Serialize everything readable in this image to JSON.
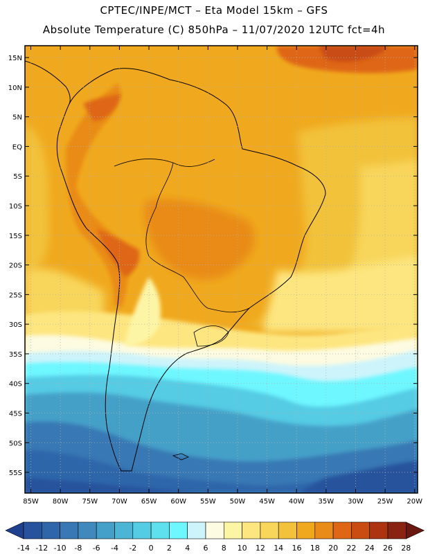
{
  "header": {
    "title_line1": "CPTEC/INPE/MCT –   Eta Model 15km – GFS",
    "title_line2": "Absolute Temperature (C) 850hPa – 11/07/2020 12UTC fct=4h"
  },
  "map": {
    "lat_labels": [
      "15N",
      "10N",
      "5N",
      "EQ",
      "5S",
      "10S",
      "15S",
      "20S",
      "25S",
      "30S",
      "35S",
      "40S",
      "45S",
      "50S",
      "55S"
    ],
    "lon_labels": [
      "85W",
      "80W",
      "75W",
      "70W",
      "65W",
      "60W",
      "55W",
      "50W",
      "45W",
      "40W",
      "35W",
      "30W",
      "25W",
      "20W"
    ]
  },
  "colorbar": {
    "labels": [
      "-14",
      "-12",
      "-10",
      "-8",
      "-6",
      "-4",
      "-2",
      "0",
      "2",
      "4",
      "6",
      "8",
      "10",
      "12",
      "14",
      "16",
      "18",
      "20",
      "22",
      "24",
      "26",
      "28"
    ],
    "colors": [
      "#1f3f8f",
      "#27529c",
      "#2f66aa",
      "#3878b4",
      "#4089bd",
      "#44a0c8",
      "#4cb5d5",
      "#55cbe4",
      "#5fe0ef",
      "#6ef7ff",
      "#cdf4fb",
      "#fdfbe1",
      "#fdf5a6",
      "#fde680",
      "#f8d65c",
      "#f2c23b",
      "#f0a91e",
      "#e98b18",
      "#de6614",
      "#c94c12",
      "#ac3410",
      "#8a2412",
      "#6a1710"
    ]
  }
}
